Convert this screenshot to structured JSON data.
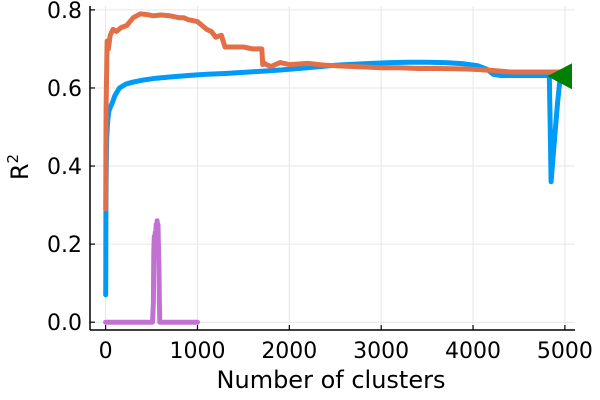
{
  "chart_data": {
    "type": "line",
    "title": "",
    "xlabel": "Number of clusters",
    "ylabel_base": "R",
    "ylabel_sup": "2",
    "xlim": [
      -170,
      5110
    ],
    "ylim": [
      -0.02,
      0.81
    ],
    "xticks": [
      0,
      1000,
      2000,
      3000,
      4000,
      5000
    ],
    "xtick_labels": [
      "0",
      "1000",
      "2000",
      "3000",
      "4000",
      "5000"
    ],
    "yticks": [
      0.0,
      0.2,
      0.4,
      0.6,
      0.8
    ],
    "ytick_labels": [
      "0.0",
      "0.2",
      "0.4",
      "0.6",
      "0.8"
    ],
    "grid": true,
    "legend": "none",
    "series": [
      {
        "color": "#009af9",
        "x": [
          1,
          2,
          3,
          5,
          8,
          12,
          18,
          25,
          35,
          50,
          70,
          100,
          150,
          220,
          300,
          400,
          550,
          700,
          900,
          1100,
          1300,
          1500,
          1700,
          1900,
          2100,
          2300,
          2500,
          2700,
          2900,
          3100,
          3300,
          3500,
          3700,
          3900,
          4050,
          4150,
          4220,
          4300,
          4500,
          4700,
          4800,
          4830,
          4840,
          4850,
          4880,
          4920,
          4950
        ],
        "y": [
          0.07,
          0.13,
          0.28,
          0.36,
          0.42,
          0.47,
          0.5,
          0.52,
          0.54,
          0.55,
          0.56,
          0.58,
          0.6,
          0.61,
          0.615,
          0.62,
          0.625,
          0.628,
          0.632,
          0.635,
          0.637,
          0.64,
          0.643,
          0.646,
          0.65,
          0.654,
          0.658,
          0.661,
          0.663,
          0.665,
          0.666,
          0.666,
          0.665,
          0.662,
          0.657,
          0.648,
          0.635,
          0.632,
          0.632,
          0.632,
          0.632,
          0.632,
          0.5,
          0.36,
          0.45,
          0.56,
          0.63
        ]
      },
      {
        "color": "#e26f46",
        "x": [
          1,
          2,
          3,
          5,
          8,
          12,
          16,
          20,
          30,
          50,
          80,
          120,
          170,
          230,
          300,
          380,
          450,
          520,
          600,
          700,
          800,
          850,
          900,
          1000,
          1050,
          1100,
          1150,
          1200,
          1260,
          1300,
          1400,
          1500,
          1600,
          1700,
          1710,
          1720,
          1750,
          1800,
          1900,
          2000,
          2200,
          2400,
          2600,
          2800,
          3000,
          3200,
          3400,
          3600,
          3800,
          4000,
          4200,
          4400,
          4600,
          4800,
          4950
        ],
        "y": [
          0.29,
          0.35,
          0.45,
          0.55,
          0.6,
          0.65,
          0.72,
          0.7,
          0.7,
          0.735,
          0.75,
          0.745,
          0.755,
          0.76,
          0.78,
          0.79,
          0.788,
          0.785,
          0.787,
          0.785,
          0.78,
          0.78,
          0.775,
          0.77,
          0.76,
          0.75,
          0.745,
          0.73,
          0.735,
          0.705,
          0.705,
          0.705,
          0.7,
          0.7,
          0.66,
          0.665,
          0.66,
          0.655,
          0.665,
          0.66,
          0.663,
          0.658,
          0.656,
          0.654,
          0.652,
          0.652,
          0.65,
          0.65,
          0.649,
          0.648,
          0.645,
          0.641,
          0.641,
          0.641,
          0.641
        ]
      },
      {
        "color": "#c271d2",
        "x": [
          0,
          100,
          200,
          300,
          400,
          500,
          510,
          520,
          525,
          530,
          535,
          540,
          545,
          550,
          555,
          560,
          565,
          570,
          575,
          580,
          585,
          590,
          600,
          700,
          800,
          900,
          1000
        ],
        "y": [
          0.0,
          0.0,
          0.0,
          0.0,
          0.0,
          0.0,
          0.0,
          0.05,
          0.18,
          0.22,
          0.2,
          0.23,
          0.21,
          0.25,
          0.22,
          0.26,
          0.24,
          0.25,
          0.2,
          0.15,
          0.05,
          0.0,
          0.0,
          0.0,
          0.0,
          0.0,
          0.0
        ]
      }
    ],
    "markers": [
      {
        "shape": "triangle-left",
        "x": 4950,
        "y": 0.63,
        "color": "#008000"
      }
    ]
  }
}
